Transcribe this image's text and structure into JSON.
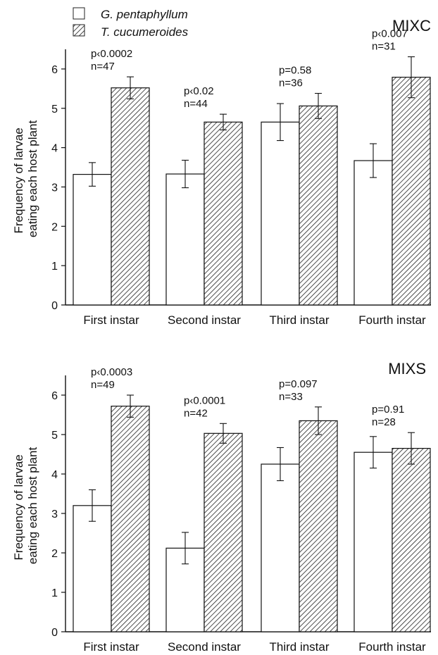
{
  "legend": {
    "items": [
      {
        "label": "G. pentaphyllum",
        "pattern": "open"
      },
      {
        "label": "T. cucumeroides",
        "pattern": "hatched"
      }
    ]
  },
  "chart_data": [
    {
      "type": "bar",
      "title": "MIXC",
      "ylabel": "Frequency of larvae eating each host plant",
      "xlabel": "",
      "ylim": [
        0,
        6.5
      ],
      "yticks": [
        "0",
        "1",
        "2",
        "3",
        "4",
        "5",
        "6"
      ],
      "categories": [
        "First instar",
        "Second instar",
        "Third instar",
        "Fourth instar"
      ],
      "series": [
        {
          "name": "G. pentaphyllum",
          "values": [
            3.32,
            3.33,
            4.65,
            3.67
          ],
          "errors": [
            0.3,
            0.35,
            0.47,
            0.43
          ]
        },
        {
          "name": "T. cucumeroides",
          "values": [
            5.52,
            4.65,
            5.06,
            5.79
          ],
          "errors": [
            0.28,
            0.2,
            0.32,
            0.52
          ]
        }
      ],
      "annotations": [
        {
          "p": "p‹0.0002",
          "n": "n=47"
        },
        {
          "p": "p‹0.02",
          "n": "n=44"
        },
        {
          "p": "p=0.58",
          "n": "n=36"
        },
        {
          "p": "p‹0.007",
          "n": "n=31"
        }
      ]
    },
    {
      "type": "bar",
      "title": "MIXS",
      "ylabel": "Frequency of larvae eating each host plant",
      "xlabel": "",
      "ylim": [
        0,
        6.5
      ],
      "yticks": [
        "0",
        "1",
        "2",
        "3",
        "4",
        "5",
        "6"
      ],
      "categories": [
        "First instar",
        "Second instar",
        "Third instar",
        "Fourth instar"
      ],
      "series": [
        {
          "name": "G. pentaphyllum",
          "values": [
            3.2,
            2.12,
            4.25,
            4.55
          ],
          "errors": [
            0.4,
            0.4,
            0.42,
            0.4
          ]
        },
        {
          "name": "T. cucumeroides",
          "values": [
            5.72,
            5.03,
            5.35,
            4.65
          ],
          "errors": [
            0.28,
            0.25,
            0.35,
            0.4
          ]
        }
      ],
      "annotations": [
        {
          "p": "p‹0.0003",
          "n": "n=49"
        },
        {
          "p": "p‹0.0001",
          "n": "n=42"
        },
        {
          "p": "p=0.097",
          "n": "n=33"
        },
        {
          "p": "p=0.91",
          "n": "n=28"
        }
      ]
    }
  ]
}
